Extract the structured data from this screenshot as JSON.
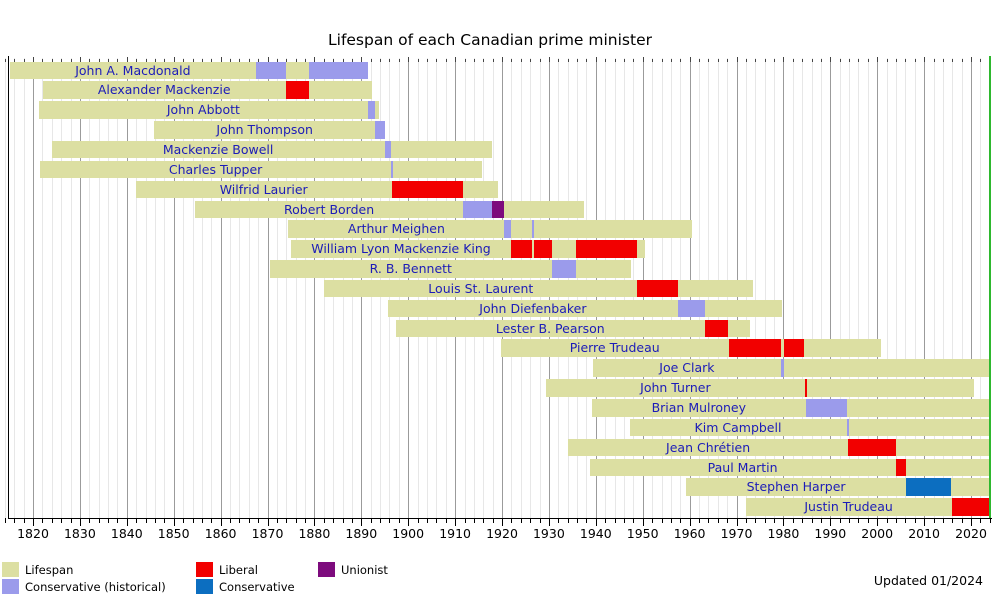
{
  "title": "Lifespan of each Canadian prime minister",
  "updated": "Updated 01/2024",
  "chart_data": {
    "type": "bar",
    "variant": "lifespan-timeline-gantt",
    "title": "Lifespan of each Canadian prime minister",
    "x_axis": {
      "min": 1814,
      "max": 2024.6,
      "tick_labels": [
        1820,
        1830,
        1840,
        1850,
        1860,
        1870,
        1880,
        1890,
        1900,
        1910,
        1920,
        1930,
        1940,
        1950,
        1960,
        1970,
        1980,
        1990,
        2000,
        2010,
        2020
      ],
      "minor_tick_interval": 2,
      "major_tick_interval": 10,
      "grid": true
    },
    "now_line": {
      "year": 2024.08,
      "color": "#2eb82e"
    },
    "colors": {
      "lifespan": "#dcdfa2",
      "conservative_historical": "#9b9beb",
      "liberal": "#f20000",
      "conservative": "#0c6ec0",
      "unionist": "#7d0b7d",
      "name_text": "#1c1cb8",
      "grid_minor": "#e7e7e7",
      "grid_major": "#9b9b9b"
    },
    "legend": [
      {
        "label": "Lifespan",
        "key": "lifespan"
      },
      {
        "label": "Conservative (historical)",
        "key": "conservative_historical"
      },
      {
        "label": "Liberal",
        "key": "liberal"
      },
      {
        "label": "Conservative",
        "key": "conservative"
      },
      {
        "label": "Unionist",
        "key": "unionist"
      }
    ],
    "prime_ministers": [
      {
        "name": "John A. Macdonald",
        "born": 1815.04,
        "died": 1891.44,
        "terms": [
          {
            "start": 1867.54,
            "end": 1873.86,
            "party": "conservative_historical"
          },
          {
            "start": 1878.79,
            "end": 1891.43,
            "party": "conservative_historical"
          }
        ]
      },
      {
        "name": "Alexander Mackenzie",
        "born": 1822.07,
        "died": 1892.3,
        "terms": [
          {
            "start": 1873.86,
            "end": 1878.79,
            "party": "liberal"
          }
        ]
      },
      {
        "name": "John Abbott",
        "born": 1821.19,
        "died": 1893.83,
        "terms": [
          {
            "start": 1891.46,
            "end": 1892.92,
            "party": "conservative_historical"
          }
        ]
      },
      {
        "name": "John Thompson",
        "born": 1845.88,
        "died": 1894.95,
        "terms": [
          {
            "start": 1892.92,
            "end": 1894.95,
            "party": "conservative_historical"
          }
        ]
      },
      {
        "name": "Mackenzie Bowell",
        "born": 1823.98,
        "died": 1917.94,
        "terms": [
          {
            "start": 1894.96,
            "end": 1896.34,
            "party": "conservative_historical"
          }
        ]
      },
      {
        "name": "Charles Tupper",
        "born": 1821.5,
        "died": 1915.83,
        "terms": [
          {
            "start": 1896.35,
            "end": 1896.52,
            "party": "conservative_historical"
          }
        ]
      },
      {
        "name": "Wilfrid Laurier",
        "born": 1841.88,
        "died": 1919.13,
        "terms": [
          {
            "start": 1896.52,
            "end": 1911.76,
            "party": "liberal"
          }
        ]
      },
      {
        "name": "Robert Borden",
        "born": 1854.49,
        "died": 1937.45,
        "terms": [
          {
            "start": 1911.76,
            "end": 1917.79,
            "party": "conservative_historical"
          },
          {
            "start": 1917.79,
            "end": 1920.52,
            "party": "unionist"
          }
        ]
      },
      {
        "name": "Arthur Meighen",
        "born": 1874.46,
        "died": 1960.61,
        "terms": [
          {
            "start": 1920.52,
            "end": 1921.99,
            "party": "conservative_historical"
          },
          {
            "start": 1926.49,
            "end": 1926.73,
            "party": "conservative_historical"
          }
        ]
      },
      {
        "name": "William Lyon Mackenzie King",
        "born": 1874.96,
        "died": 1950.56,
        "terms": [
          {
            "start": 1921.99,
            "end": 1926.49,
            "party": "liberal"
          },
          {
            "start": 1926.73,
            "end": 1930.59,
            "party": "liberal"
          },
          {
            "start": 1935.8,
            "end": 1948.87,
            "party": "liberal"
          }
        ]
      },
      {
        "name": "R. B. Bennett",
        "born": 1870.52,
        "died": 1947.49,
        "terms": [
          {
            "start": 1930.59,
            "end": 1935.8,
            "party": "conservative_historical"
          }
        ]
      },
      {
        "name": "Louis St. Laurent",
        "born": 1882.09,
        "died": 1973.56,
        "terms": [
          {
            "start": 1948.87,
            "end": 1957.46,
            "party": "liberal"
          }
        ]
      },
      {
        "name": "John Diefenbaker",
        "born": 1895.71,
        "died": 1979.62,
        "terms": [
          {
            "start": 1957.46,
            "end": 1963.3,
            "party": "conservative_historical"
          }
        ]
      },
      {
        "name": "Lester B. Pearson",
        "born": 1897.31,
        "died": 1972.99,
        "terms": [
          {
            "start": 1963.3,
            "end": 1968.3,
            "party": "liberal"
          }
        ]
      },
      {
        "name": "Pierre Trudeau",
        "born": 1919.78,
        "died": 2000.74,
        "terms": [
          {
            "start": 1968.3,
            "end": 1979.42,
            "party": "liberal"
          },
          {
            "start": 1980.17,
            "end": 1984.5,
            "party": "liberal"
          }
        ]
      },
      {
        "name": "Joe Clark",
        "born": 1939.42,
        "died": null,
        "terms": [
          {
            "start": 1979.42,
            "end": 1980.17,
            "party": "conservative_historical"
          }
        ]
      },
      {
        "name": "John Turner",
        "born": 1929.44,
        "died": 2020.71,
        "terms": [
          {
            "start": 1984.5,
            "end": 1984.72,
            "party": "liberal"
          }
        ]
      },
      {
        "name": "Brian Mulroney",
        "born": 1939.19,
        "died": null,
        "terms": [
          {
            "start": 1984.72,
            "end": 1993.47,
            "party": "conservative_historical"
          }
        ]
      },
      {
        "name": "Kim Campbell",
        "born": 1947.18,
        "died": null,
        "terms": [
          {
            "start": 1993.47,
            "end": 1993.84,
            "party": "conservative_historical"
          }
        ]
      },
      {
        "name": "Jean Chrétien",
        "born": 1934.03,
        "died": null,
        "terms": [
          {
            "start": 1993.84,
            "end": 2003.93,
            "party": "liberal"
          }
        ]
      },
      {
        "name": "Paul Martin",
        "born": 1938.66,
        "died": null,
        "terms": [
          {
            "start": 2003.93,
            "end": 2006.09,
            "party": "liberal"
          }
        ]
      },
      {
        "name": "Stephen Harper",
        "born": 1959.32,
        "died": null,
        "terms": [
          {
            "start": 2006.09,
            "end": 2015.84,
            "party": "conservative"
          }
        ]
      },
      {
        "name": "Justin Trudeau",
        "born": 1971.97,
        "died": null,
        "terms": [
          {
            "start": 2015.84,
            "end": 2024.08,
            "party": "liberal"
          }
        ]
      }
    ]
  }
}
